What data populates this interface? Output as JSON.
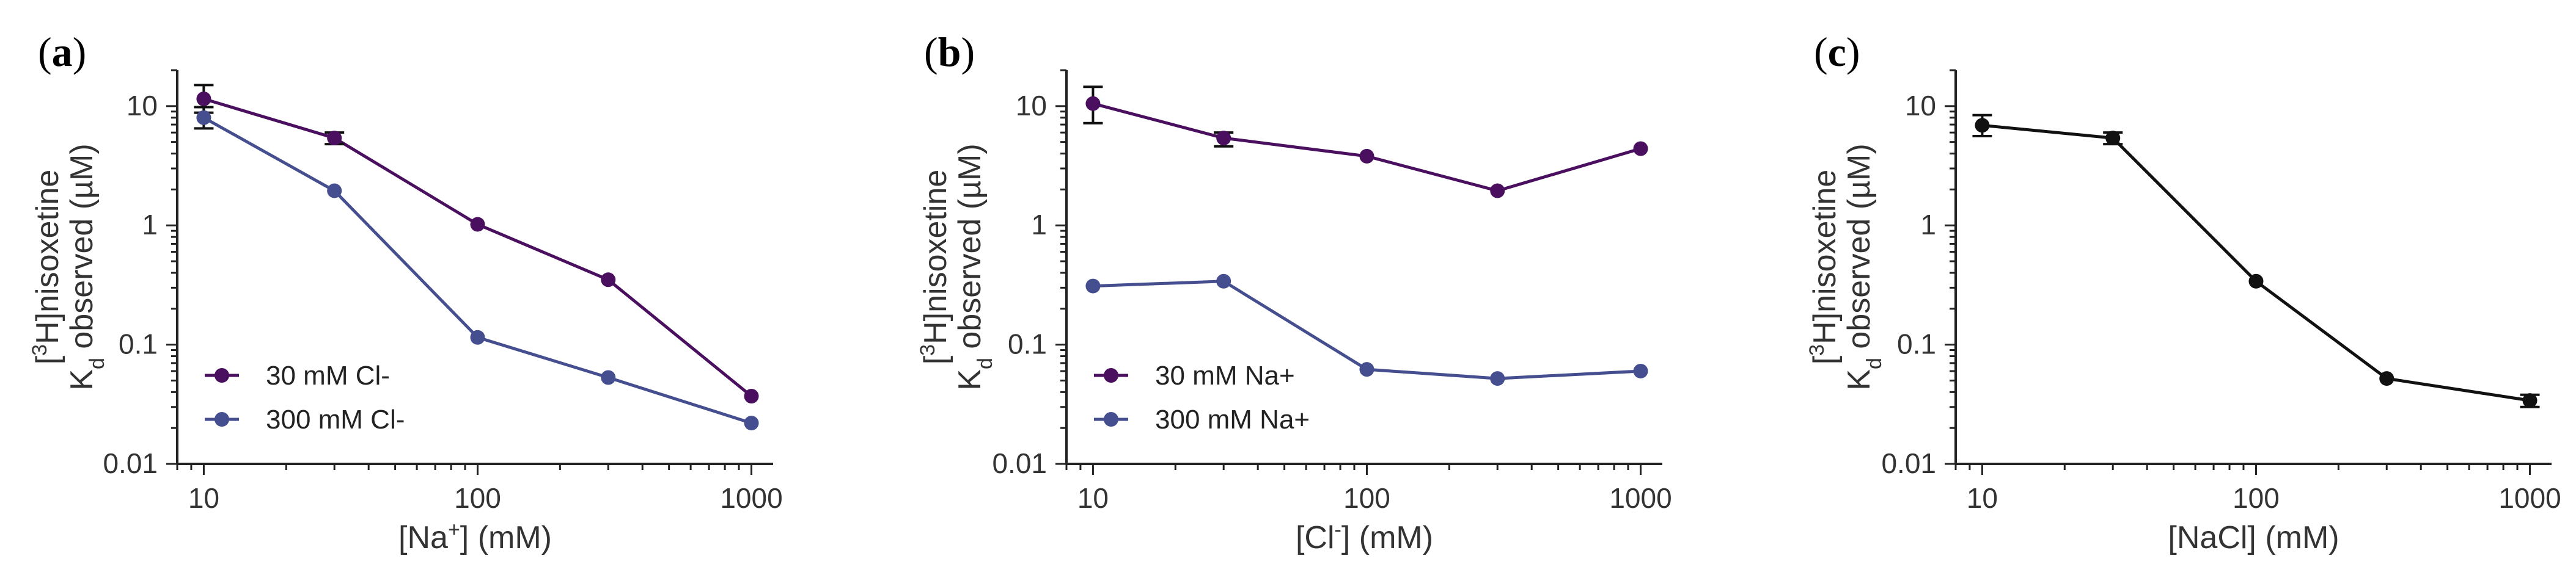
{
  "chart_data": [
    {
      "type": "line",
      "panel": "a",
      "panel_label_open": "(",
      "panel_label_close": ")",
      "xscale": "log",
      "yscale": "log",
      "xlim": [
        8,
        1200
      ],
      "ylim": [
        0.01,
        20
      ],
      "xticks": [
        10,
        100,
        1000
      ],
      "xtick_labels": [
        "10",
        "100",
        "1000"
      ],
      "yticks": [
        0.01,
        0.1,
        1,
        10
      ],
      "ytick_labels": [
        "0.01",
        "0.1",
        "1",
        "10"
      ],
      "xlabel_pre": "[Na",
      "xlabel_sup": "+",
      "xlabel_post": "] (mM)",
      "ylabel_line1_pre": "[",
      "ylabel_line1_sup": "3",
      "ylabel_line1_post": "H]nisoxetine",
      "ylabel_line2_pre": "K",
      "ylabel_line2_sub": "d",
      "ylabel_line2_post": " observed (µM)",
      "legend_position": "bottom-left",
      "series": [
        {
          "name": "30 mM Cl-",
          "color": "#4a0f5e",
          "x": [
            10,
            30,
            100,
            300,
            1000
          ],
          "y": [
            11.5,
            5.4,
            1.02,
            0.35,
            0.037
          ],
          "err_low": [
            8.8,
            4.8,
            null,
            null,
            null
          ],
          "err_high": [
            15,
            6.0,
            null,
            null,
            null
          ]
        },
        {
          "name": "300 mM Cl-",
          "color": "#454f90",
          "x": [
            10,
            30,
            100,
            300,
            1000
          ],
          "y": [
            8.0,
            1.95,
            0.115,
            0.053,
            0.022
          ],
          "err_low": [
            6.5,
            null,
            null,
            null,
            null
          ],
          "err_high": [
            9.8,
            null,
            null,
            null,
            null
          ]
        }
      ]
    },
    {
      "type": "line",
      "panel": "b",
      "panel_label_open": "(",
      "panel_label_close": ")",
      "xscale": "log",
      "yscale": "log",
      "xlim": [
        8,
        1200
      ],
      "ylim": [
        0.01,
        20
      ],
      "xticks": [
        10,
        100,
        1000
      ],
      "xtick_labels": [
        "10",
        "100",
        "1000"
      ],
      "yticks": [
        0.01,
        0.1,
        1,
        10
      ],
      "ytick_labels": [
        "0.01",
        "0.1",
        "1",
        "10"
      ],
      "xlabel_pre": "[Cl",
      "xlabel_sup": "-",
      "xlabel_post": "] (mM)",
      "ylabel_line1_pre": "[",
      "ylabel_line1_sup": "3",
      "ylabel_line1_post": "H]nisoxetine",
      "ylabel_line2_pre": "K",
      "ylabel_line2_sub": "d",
      "ylabel_line2_post": " observed (µM)",
      "legend_position": "bottom-left",
      "series": [
        {
          "name": "30 mM Na+",
          "color": "#4a0f5e",
          "x": [
            10,
            30,
            100,
            300,
            1000
          ],
          "y": [
            10.5,
            5.4,
            3.8,
            1.95,
            4.4
          ],
          "err_low": [
            7.2,
            4.6,
            null,
            null,
            null
          ],
          "err_high": [
            14.5,
            6.0,
            null,
            null,
            null
          ]
        },
        {
          "name": "300 mM Na+",
          "color": "#454f90",
          "x": [
            10,
            30,
            100,
            300,
            1000
          ],
          "y": [
            0.31,
            0.34,
            0.062,
            0.052,
            0.06
          ],
          "err_low": [
            null,
            null,
            null,
            null,
            null
          ],
          "err_high": [
            null,
            null,
            null,
            null,
            null
          ]
        }
      ]
    },
    {
      "type": "line",
      "panel": "c",
      "panel_label_open": "(",
      "panel_label_close": ")",
      "xscale": "log",
      "yscale": "log",
      "xlim": [
        8,
        1200
      ],
      "ylim": [
        0.01,
        20
      ],
      "xticks": [
        10,
        100,
        1000
      ],
      "xtick_labels": [
        "10",
        "100",
        "1000"
      ],
      "yticks": [
        0.01,
        0.1,
        1,
        10
      ],
      "ytick_labels": [
        "0.01",
        "0.1",
        "1",
        "10"
      ],
      "xlabel_pre": "[NaCl] (mM)",
      "xlabel_sup": "",
      "xlabel_post": "",
      "ylabel_line1_pre": "[",
      "ylabel_line1_sup": "3",
      "ylabel_line1_post": "H]nisoxetine",
      "ylabel_line2_pre": "K",
      "ylabel_line2_sub": "d",
      "ylabel_line2_post": " observed (µM)",
      "legend_position": "none",
      "series": [
        {
          "name": "",
          "color": "#111111",
          "x": [
            10,
            30,
            100,
            300,
            1000
          ],
          "y": [
            6.9,
            5.4,
            0.34,
            0.052,
            0.034
          ],
          "err_low": [
            5.6,
            4.8,
            null,
            null,
            0.03
          ],
          "err_high": [
            8.4,
            6.0,
            null,
            null,
            0.038
          ]
        }
      ]
    }
  ]
}
